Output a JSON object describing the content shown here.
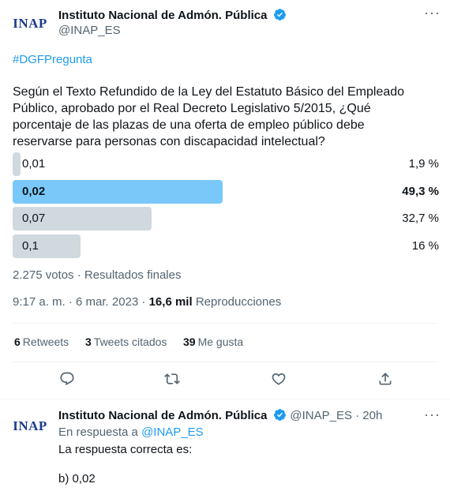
{
  "tweet": {
    "author_logo": "INAP",
    "author_name": "Instituto Nacional de Admón. Pública",
    "handle": "@INAP_ES",
    "more_icon": "more-horizontal-icon",
    "hashtag": "#DGFPregunta",
    "text_lines": [
      "Según el Texto Refundido de la Ley del Estatuto Básico del Empleado",
      "Público, aprobado por el Real Decreto Legislativo 5/2015, ¿Qué",
      "porcentaje de las plazas de una oferta de empleo público debe",
      "reservarse para personas con discapacidad intelectual?"
    ],
    "poll": {
      "options": [
        {
          "label": "0,01",
          "percent_text": "1,9 %",
          "percent": 1.9,
          "winner": false
        },
        {
          "label": "0,02",
          "percent_text": "49,3 %",
          "percent": 49.3,
          "winner": true
        },
        {
          "label": "0,07",
          "percent_text": "32,7 %",
          "percent": 32.7,
          "winner": false
        },
        {
          "label": "0,1",
          "percent_text": "16 %",
          "percent": 16,
          "winner": false
        }
      ],
      "colors": {
        "winner": "#7ac8f9",
        "other": "#cfd9de"
      },
      "summary": "2.275 votos · Resultados finales"
    },
    "time": "9:17 a. m. · 6 mar. 2023 · ",
    "views_count": "16,6 mil",
    "views_label": "Reproducciones",
    "stats": {
      "retweets_count": "6",
      "retweets_label": "Retweets",
      "quotes_count": "3",
      "quotes_label": "Tweets citados",
      "likes_count": "39",
      "likes_label": "Me gusta"
    },
    "actions": [
      "reply-icon",
      "retweet-icon",
      "like-icon",
      "share-icon"
    ]
  },
  "reply": {
    "author_logo": "INAP",
    "author_name": "Instituto Nacional de Admón. Pública",
    "handle_time": "@INAP_ES · 20h",
    "in_reply_prefix": "En respuesta a",
    "in_reply_handle": "@INAP_ES",
    "line1": "La respuesta correcta es:",
    "line2": "b) 0,02"
  },
  "colors": {
    "accent": "#1d9bf0",
    "verified": "#1d9bf0",
    "secondary_text": "#536471"
  }
}
